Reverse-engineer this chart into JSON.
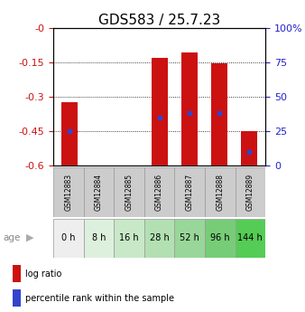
{
  "title": "GDS583 / 25.7.23",
  "samples": [
    "GSM12883",
    "GSM12884",
    "GSM12885",
    "GSM12886",
    "GSM12887",
    "GSM12888",
    "GSM12889"
  ],
  "ages": [
    "0 h",
    "8 h",
    "16 h",
    "28 h",
    "52 h",
    "96 h",
    "144 h"
  ],
  "log_ratio_tops": [
    -0.325,
    0.0,
    0.0,
    -0.13,
    -0.105,
    -0.155,
    -0.45
  ],
  "log_ratio_bottoms": [
    -0.61,
    0.0,
    0.0,
    -0.605,
    -0.61,
    -0.605,
    -0.61
  ],
  "percentile_ranks": [
    25,
    0,
    0,
    35,
    38,
    38,
    10
  ],
  "ylim_left": [
    -0.6,
    0.0
  ],
  "ylim_right": [
    0,
    100
  ],
  "yticks_left": [
    0.0,
    -0.15,
    -0.3,
    -0.45,
    -0.6
  ],
  "yticks_right": [
    0,
    25,
    50,
    75,
    100
  ],
  "bar_color": "#cc1111",
  "percentile_color": "#3344cc",
  "age_bg_colors": [
    "#eeeeee",
    "#ddf0dd",
    "#c8e8c8",
    "#b3e0b3",
    "#99d699",
    "#77cc77",
    "#55cc55"
  ],
  "gsm_bg_color": "#cccccc",
  "bar_width": 0.55,
  "left_tick_color": "#cc1111",
  "right_tick_color": "#2222cc",
  "title_fontsize": 11,
  "tick_labelsize": 8,
  "legend_fontsize": 7
}
